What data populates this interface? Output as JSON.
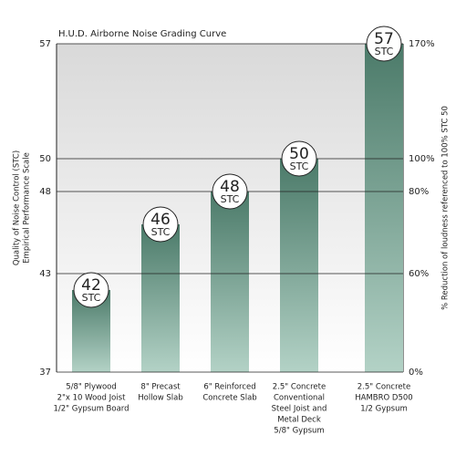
{
  "chart_data": {
    "type": "bar",
    "title": "H.U.D. Airborne Noise Grading Curve",
    "ylabel": [
      "Quality of Noise Control (STC)",
      "Empirical Performance Scale"
    ],
    "y2label": "% Reduction of loudness referenced to 100% STC 50",
    "unit": "STC",
    "categories": [
      [
        "5/8\" Plywood",
        "2\"x 10 Wood Joist",
        "1/2\" Gypsum Board"
      ],
      [
        "8\" Precast",
        "Hollow Slab"
      ],
      [
        "6\" Reinforced",
        "Concrete Slab"
      ],
      [
        "2.5\" Concrete",
        "Conventional",
        "Steel Joist and",
        "Metal Deck",
        "5/8\" Gypsum"
      ],
      [
        "2.5\" Concrete",
        "HAMBRO D500",
        "1/2 Gypsum"
      ]
    ],
    "values": [
      42,
      46,
      48,
      50,
      57
    ],
    "color": [
      "#4b7a69",
      "#b3d2c6"
    ],
    "ylim": [
      37,
      57
    ],
    "yticks": [
      37,
      43,
      48,
      50,
      57
    ],
    "y2ticks": [
      {
        "value": 0,
        "label": "0%"
      },
      {
        "value": 60,
        "label": "60%"
      },
      {
        "value": 80,
        "label": "80%"
      },
      {
        "value": 100,
        "label": "100%"
      },
      {
        "value": 170,
        "label": "170%"
      }
    ],
    "grid": true
  }
}
